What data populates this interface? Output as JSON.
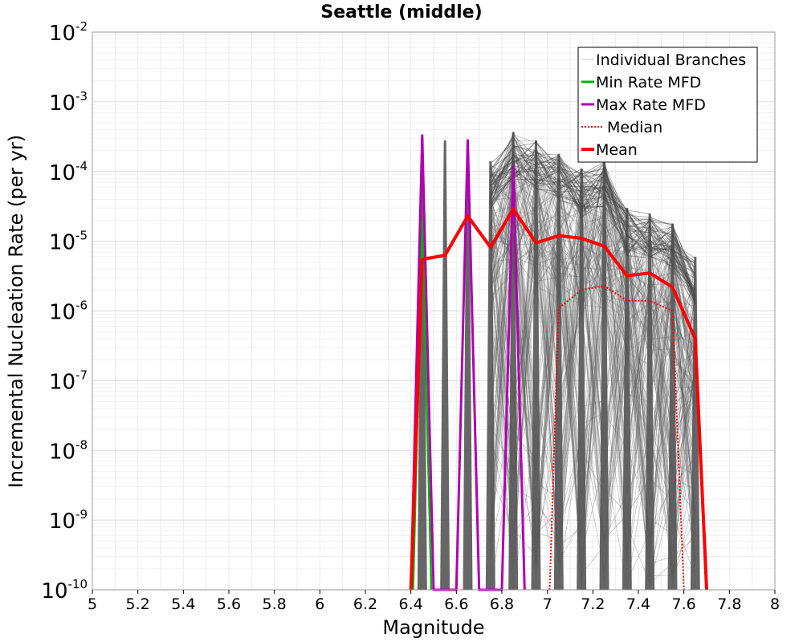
{
  "chart_data": {
    "type": "line",
    "title": "Seattle (middle)",
    "xlabel": "Magnitude",
    "ylabel": "Incremental Nucleation Rate (per yr)",
    "xlim": [
      5,
      8
    ],
    "ylim_log10": [
      -10,
      -2
    ],
    "y_scale": "log",
    "x_ticks": [
      "5",
      "5.2",
      "5.4",
      "5.6",
      "5.8",
      "6",
      "6.2",
      "6.4",
      "6.6",
      "6.8",
      "7",
      "7.2",
      "7.4",
      "7.6",
      "7.8",
      "8"
    ],
    "y_ticks": [
      {
        "base": "10",
        "exp": "-10"
      },
      {
        "base": "10",
        "exp": "-9"
      },
      {
        "base": "10",
        "exp": "-8"
      },
      {
        "base": "10",
        "exp": "-7"
      },
      {
        "base": "10",
        "exp": "-6"
      },
      {
        "base": "10",
        "exp": "-5"
      },
      {
        "base": "10",
        "exp": "-4"
      },
      {
        "base": "10",
        "exp": "-3"
      },
      {
        "base": "10",
        "exp": "-2"
      }
    ],
    "grid": true,
    "legend_position": "top-right",
    "legend": [
      {
        "label": "Individual Branches",
        "color": "#c8c8c8",
        "style": "thin"
      },
      {
        "label": "Min Rate MFD",
        "color": "#00b000",
        "style": "solid"
      },
      {
        "label": "Max Rate MFD",
        "color": "#b000b0",
        "style": "solid"
      },
      {
        "label": "Median",
        "color": "#ff0000",
        "style": "dotted"
      },
      {
        "label": "Mean",
        "color": "#ff0000",
        "style": "thick"
      }
    ],
    "branch_peaks": [
      {
        "x": 6.45,
        "ymax": 0.0003
      },
      {
        "x": 6.55,
        "ymax": 0.00028
      },
      {
        "x": 6.65,
        "ymax": 0.00028
      },
      {
        "x": 6.75,
        "ymax": 0.00014
      },
      {
        "x": 6.85,
        "ymax": 0.00037
      },
      {
        "x": 6.95,
        "ymax": 0.00028
      },
      {
        "x": 7.05,
        "ymax": 0.00018
      },
      {
        "x": 7.15,
        "ymax": 0.00011
      },
      {
        "x": 7.25,
        "ymax": 0.00015
      },
      {
        "x": 7.35,
        "ymax": 3e-05
      },
      {
        "x": 7.45,
        "ymax": 2.5e-05
      },
      {
        "x": 7.55,
        "ymax": 1.8e-05
      },
      {
        "x": 7.65,
        "ymax": 6e-06
      }
    ],
    "series": [
      {
        "name": "Mean",
        "color": "#ff0000",
        "x": [
          6.4,
          6.45,
          6.55,
          6.65,
          6.75,
          6.85,
          6.95,
          7.05,
          7.15,
          7.25,
          7.35,
          7.45,
          7.55,
          7.65,
          7.7
        ],
        "y": [
          1e-10,
          5.5e-06,
          6.3e-06,
          2.3e-05,
          8.2e-06,
          2.9e-05,
          9.5e-06,
          1.2e-05,
          1.1e-05,
          8.5e-06,
          3.2e-06,
          3.5e-06,
          2.2e-06,
          4e-07,
          1e-10
        ]
      },
      {
        "name": "Median",
        "color": "#ff0000",
        "x": [
          7.01,
          7.05,
          7.15,
          7.25,
          7.35,
          7.45,
          7.55,
          7.6
        ],
        "y": [
          1e-10,
          1.1e-06,
          2e-06,
          2.3e-06,
          1.4e-06,
          1.4e-06,
          1e-06,
          1e-10
        ]
      },
      {
        "name": "Max Rate MFD",
        "color": "#b000b0",
        "x": [
          6.4,
          6.45,
          6.5,
          6.6,
          6.65,
          6.7,
          6.8,
          6.85,
          6.9
        ],
        "y": [
          1e-10,
          0.00033,
          1e-10,
          1e-10,
          0.00028,
          1e-10,
          1e-10,
          0.00012,
          1e-10
        ]
      },
      {
        "name": "Min Rate MFD",
        "color": "#00b000",
        "x": [
          6.41,
          6.45,
          6.49
        ],
        "y": [
          1e-10,
          2e-05,
          1e-10
        ]
      }
    ]
  }
}
